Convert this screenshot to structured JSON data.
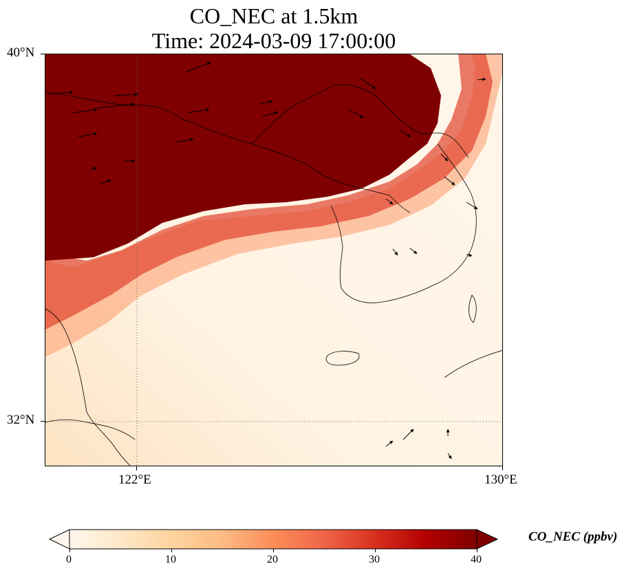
{
  "title": {
    "line1": "CO_NEC at 1.5km",
    "line2": "Time: 2024-03-09 17:00:00"
  },
  "axes": {
    "lat_labels": [
      "40°N",
      "32°N"
    ],
    "lon_labels": [
      "122°E",
      "130°E"
    ],
    "lat_range": [
      31,
      40
    ],
    "lon_range": [
      120,
      130
    ]
  },
  "colorbar": {
    "label": "CO_NEC (ppbv)",
    "ticks": [
      "0",
      "10",
      "20",
      "30",
      "40"
    ],
    "range": [
      0,
      40
    ],
    "extend": "both",
    "colormap": "OrRd",
    "colors": [
      "#fff7ec",
      "#fee8c8",
      "#fdd49e",
      "#fdbb84",
      "#fc8d59",
      "#ef6548",
      "#d7301f",
      "#b30000",
      "#7f0000"
    ]
  },
  "map": {
    "grid_style": "dotted",
    "high_concentration_color": "#7f0000",
    "background_color": "#fff3e3",
    "wind_vectors": "shown"
  }
}
